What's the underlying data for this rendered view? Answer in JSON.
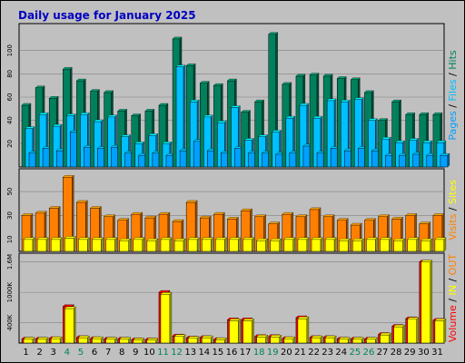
{
  "chart_data": {
    "title": "Daily usage for January 2025",
    "type": "bar",
    "categories": [
      "1",
      "2",
      "3",
      "4",
      "5",
      "6",
      "7",
      "8",
      "9",
      "10",
      "11",
      "12",
      "13",
      "14",
      "15",
      "16",
      "17",
      "18",
      "19",
      "20",
      "21",
      "22",
      "23",
      "24",
      "25",
      "26",
      "27",
      "28",
      "29",
      "30",
      "31"
    ],
    "weekend_days": [
      "4",
      "5",
      "11",
      "12",
      "18",
      "19",
      "25",
      "26"
    ],
    "panels": [
      {
        "ylabel": [
          "Pages",
          " / ",
          "Files",
          " / ",
          "Hits"
        ],
        "ylim": [
          0,
          120
        ],
        "ticks": [
          20,
          40,
          60,
          80,
          100
        ],
        "series": [
          {
            "name": "Hits",
            "values": [
              53,
              68,
              59,
              84,
              74,
              65,
              64,
              48,
              44,
              48,
              53,
              110,
              87,
              72,
              70,
              74,
              47,
              56,
              114,
              71,
              78,
              79,
              78,
              76,
              75,
              64,
              40,
              56,
              45,
              45,
              45
            ]
          },
          {
            "name": "Files",
            "values": [
              33,
              45,
              35,
              44,
              45,
              39,
              43,
              26,
              20,
              27,
              20,
              86,
              56,
              43,
              38,
              51,
              23,
              26,
              30,
              42,
              53,
              42,
              57,
              56,
              58,
              40,
              24,
              21,
              23,
              21,
              21
            ]
          },
          {
            "name": "Pages",
            "values": [
              12,
              16,
              14,
              30,
              17,
              16,
              17,
              12,
              10,
              12,
              10,
              14,
              22,
              14,
              12,
              16,
              12,
              12,
              11,
              12,
              18,
              12,
              16,
              14,
              16,
              14,
              10,
              10,
              11,
              10,
              10
            ]
          }
        ]
      },
      {
        "ylabel": [
          "Visits",
          " / ",
          "Sites"
        ],
        "ylim": [
          0,
          66
        ],
        "ticks": [
          10,
          30,
          50
        ],
        "series": [
          {
            "name": "Visits",
            "values": [
              30,
              32,
              36,
              62,
              41,
              36,
              29,
              26,
              31,
              28,
              31,
              25,
              41,
              28,
              31,
              27,
              34,
              29,
              23,
              31,
              29,
              35,
              29,
              26,
              22,
              26,
              29,
              27,
              30,
              23,
              30
            ]
          },
          {
            "name": "Sites",
            "values": [
              10,
              10,
              10,
              11,
              10,
              10,
              10,
              9,
              10,
              9,
              10,
              9,
              10,
              10,
              10,
              10,
              10,
              9,
              9,
              10,
              10,
              10,
              10,
              9,
              9,
              10,
              10,
              9,
              10,
              9,
              10
            ]
          }
        ]
      },
      {
        "ylabel": [
          "Volume",
          " / ",
          "IN",
          " / ",
          "OUT"
        ],
        "ylim": [
          0,
          1700
        ],
        "ticks": [
          400,
          1000,
          1600
        ],
        "tick_labels": [
          "400K",
          "1000K",
          "1.6M"
        ],
        "series": [
          {
            "name": "Volume",
            "values": [
              80,
              80,
              90,
              720,
              110,
              90,
              80,
              80,
              65,
              65,
              1000,
              140,
              100,
              110,
              70,
              460,
              460,
              130,
              130,
              90,
              500,
              110,
              110,
              80,
              80,
              80,
              170,
              330,
              480,
              1600,
              450
            ]
          },
          {
            "name": "IN",
            "values": [
              75,
              75,
              85,
              680,
              105,
              85,
              75,
              75,
              60,
              60,
              960,
              130,
              95,
              105,
              65,
              440,
              440,
              120,
              120,
              85,
              480,
              105,
              105,
              75,
              75,
              75,
              160,
              320,
              470,
              1600,
              440
            ]
          }
        ]
      }
    ]
  },
  "colors": {
    "background": "#c0c0c0",
    "title": "#0000c0",
    "hits": "#00805c",
    "files": "#00c0ff",
    "pages": "#00a0ff",
    "visits": "#ff8000",
    "sites": "#ffff00",
    "volume": "#ff0000",
    "in": "#ffff00",
    "out": "#ff8000",
    "weekend": "#00805c",
    "weekday": "#000000"
  }
}
